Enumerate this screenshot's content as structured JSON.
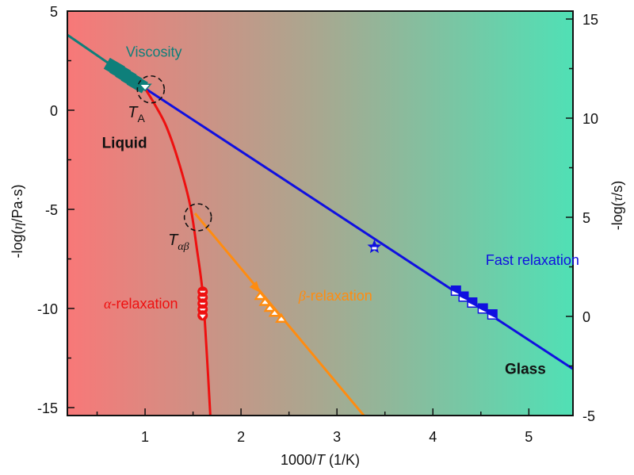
{
  "chart_data": {
    "type": "line",
    "title": "",
    "xlabel": {
      "prefix": "1000/",
      "var": "T",
      "suffix": " (1/K)"
    },
    "ylabel_left": {
      "prefix": "-log(",
      "var": "η",
      "suffix": "/Pa·s)"
    },
    "ylabel_right": {
      "prefix": "-log(",
      "var": "τ",
      "suffix": "/s)"
    },
    "xlim": [
      0.19,
      5.46
    ],
    "ylim_left": [
      -15.4,
      5.0
    ],
    "ylim_right": [
      -5.0,
      15.4
    ],
    "x_ticks": [
      1,
      2,
      3,
      4,
      5
    ],
    "x_tick_labels": [
      "1",
      "2",
      "3",
      "4",
      "5"
    ],
    "x_minor_ticks": [
      0.5,
      1.5,
      2.5,
      3.5,
      4.5
    ],
    "y_left_ticks": [
      5,
      0,
      -5,
      -10,
      -15
    ],
    "y_left_tick_labels": [
      "5",
      "0",
      "-5",
      "-10",
      "-15"
    ],
    "y_left_minor_ticks": [
      2.5,
      -2.5,
      -7.5,
      -12.5
    ],
    "y_right_ticks": [
      15,
      10,
      5,
      0,
      -5
    ],
    "y_right_tick_labels": [
      "15",
      "10",
      "5",
      "0",
      "-5"
    ],
    "y_right_minor_ticks": [
      12.5,
      7.5,
      2.5,
      -2.5
    ],
    "grid": false,
    "background_gradient": {
      "left": "#F87878",
      "middle": "#A8A890",
      "right": "#50E0B5"
    },
    "regions": [
      {
        "name": "liquid",
        "label": "Liquid",
        "x": 0.55,
        "y": -1.9
      },
      {
        "name": "glass",
        "label": "Glass",
        "x": 4.75,
        "y": -13.3
      }
    ],
    "series": [
      {
        "name": "viscosity",
        "label": "Viscosity",
        "color": "#0E7F7A",
        "line": [
          [
            0.19,
            3.8
          ],
          [
            1.0,
            1.1
          ]
        ],
        "markers": [
          [
            0.68,
            2.15
          ],
          [
            0.74,
            1.95
          ],
          [
            0.8,
            1.75
          ],
          [
            0.86,
            1.55
          ],
          [
            0.92,
            1.35
          ]
        ],
        "label_pos": [
          0.8,
          2.7
        ]
      },
      {
        "name": "fast-relaxation",
        "label": "Fast relaxation",
        "color": "#1010E0",
        "line": [
          [
            1.0,
            1.1
          ],
          [
            5.46,
            -13.05
          ]
        ],
        "markers": [
          [
            4.24,
            -9.1
          ],
          [
            4.32,
            -9.4
          ],
          [
            4.41,
            -9.7
          ],
          [
            4.52,
            -10.0
          ],
          [
            4.62,
            -10.3
          ]
        ],
        "star": [
          3.39,
          -6.9
        ],
        "label_pos": [
          4.55,
          -7.8
        ]
      },
      {
        "name": "alpha-relaxation",
        "label_greek": "α",
        "label": "-relaxation",
        "color": "#EE1010",
        "line": [
          [
            1.0,
            1.1
          ],
          [
            1.1,
            0.3
          ],
          [
            1.22,
            -0.8
          ],
          [
            1.35,
            -2.6
          ],
          [
            1.47,
            -4.8
          ],
          [
            1.54,
            -7.0
          ],
          [
            1.6,
            -9.2
          ],
          [
            1.64,
            -12.0
          ],
          [
            1.68,
            -15.4
          ]
        ],
        "markers": [
          [
            1.6,
            -9.15
          ],
          [
            1.6,
            -9.45
          ],
          [
            1.6,
            -9.75
          ],
          [
            1.6,
            -10.05
          ],
          [
            1.6,
            -10.35
          ]
        ],
        "label_pos": [
          0.57,
          -10.0
        ]
      },
      {
        "name": "beta-relaxation",
        "label_greek": "β",
        "label": "-relaxation",
        "color": "#FF8C10",
        "line": [
          [
            1.52,
            -5.2
          ],
          [
            3.28,
            -15.4
          ]
        ],
        "arrow_at": [
          2.2,
          -9.2
        ],
        "markers": [
          [
            2.2,
            -9.35
          ],
          [
            2.25,
            -9.65
          ],
          [
            2.3,
            -9.95
          ],
          [
            2.35,
            -10.2
          ],
          [
            2.42,
            -10.5
          ]
        ],
        "label_pos": [
          2.6,
          -9.6
        ]
      }
    ],
    "annotations": [
      {
        "name": "T-A",
        "var": "T",
        "sub": "A",
        "circle_center": [
          1.06,
          1.05
        ],
        "label_pos": [
          0.82,
          -0.35
        ],
        "sub_greek": false
      },
      {
        "name": "T-alpha-beta",
        "var": "T",
        "sub": "αβ",
        "circle_center": [
          1.55,
          -5.4
        ],
        "label_pos": [
          1.24,
          -6.8
        ],
        "sub_greek": true
      }
    ]
  }
}
